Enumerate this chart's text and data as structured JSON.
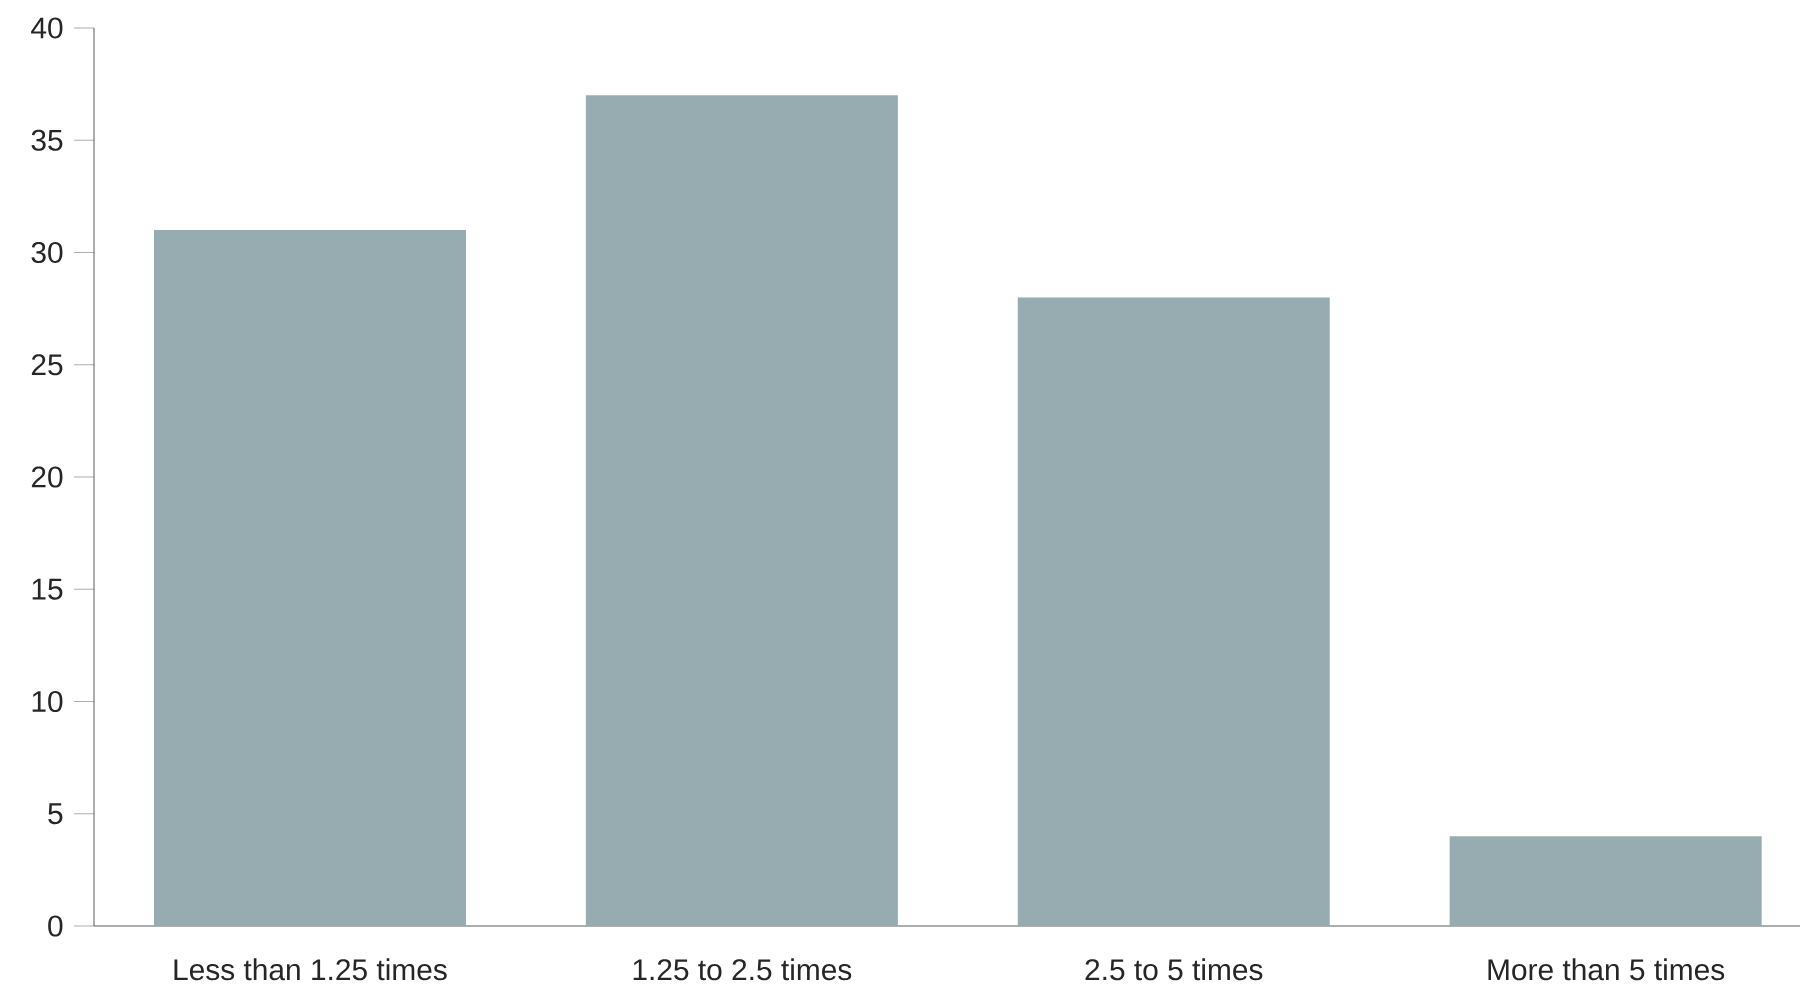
{
  "chart_data": {
    "type": "bar",
    "categories": [
      "Less than 1.25 times",
      "1.25 to 2.5 times",
      "2.5 to 5 times",
      "More than 5 times"
    ],
    "values": [
      31,
      37,
      28,
      4
    ],
    "color": "#97acb0",
    "ylim": [
      0,
      40
    ],
    "yticks": [
      0,
      5,
      10,
      15,
      20,
      25,
      30,
      35,
      40
    ],
    "grid": false
  }
}
